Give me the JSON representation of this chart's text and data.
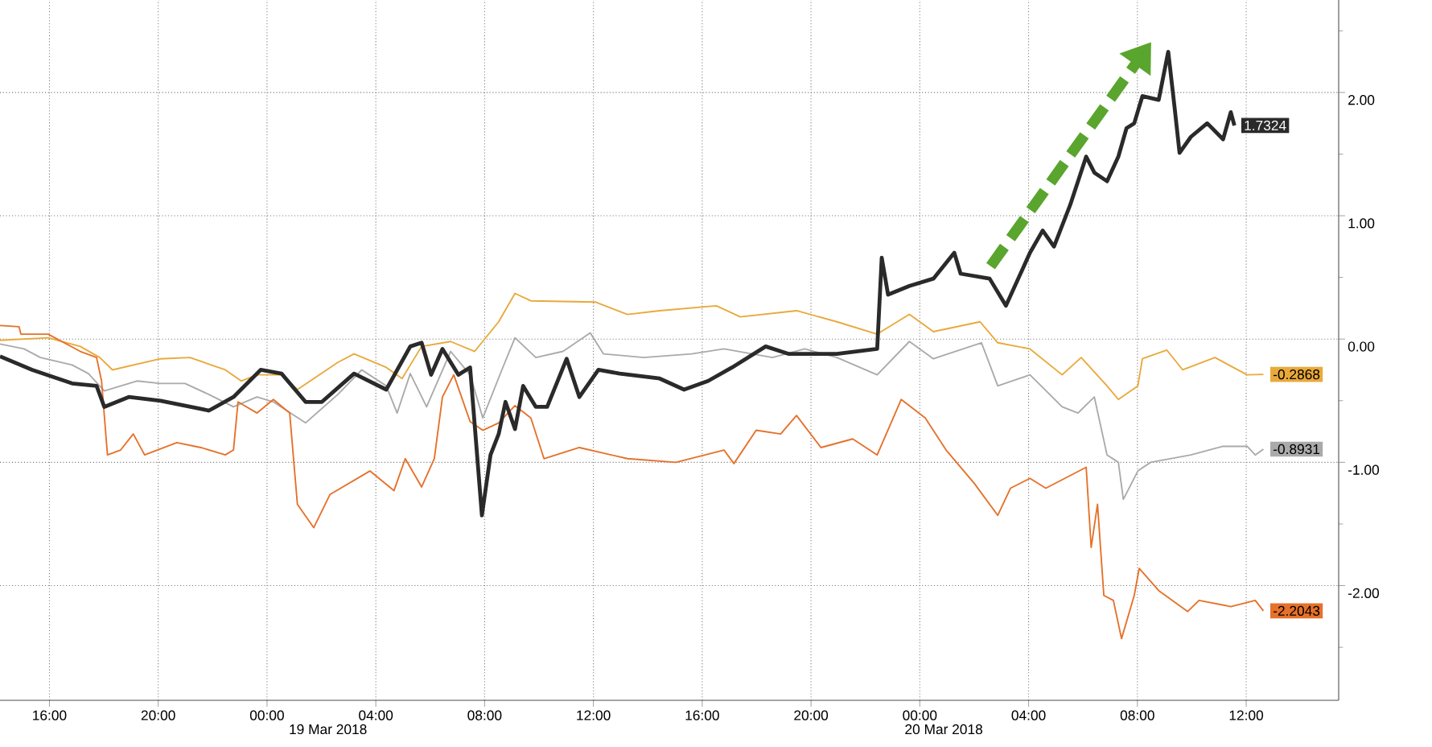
{
  "chart_data": {
    "type": "line",
    "xlim": [
      "2018-03-18T14:11",
      "2018-03-20T15:24"
    ],
    "ylim": [
      -2.93,
      2.75
    ],
    "xticks": [
      {
        "value": "2018-03-18T16:00",
        "label": "16:00"
      },
      {
        "value": "2018-03-18T20:00",
        "label": "20:00"
      },
      {
        "value": "2018-03-19T00:00",
        "label": "00:00"
      },
      {
        "value": "2018-03-19T04:00",
        "label": "04:00"
      },
      {
        "value": "2018-03-19T08:00",
        "label": "08:00"
      },
      {
        "value": "2018-03-19T12:00",
        "label": "12:00"
      },
      {
        "value": "2018-03-19T16:00",
        "label": "16:00"
      },
      {
        "value": "2018-03-19T20:00",
        "label": "20:00"
      },
      {
        "value": "2018-03-20T00:00",
        "label": "00:00"
      },
      {
        "value": "2018-03-20T04:00",
        "label": "04:00"
      },
      {
        "value": "2018-03-20T08:00",
        "label": "08:00"
      },
      {
        "value": "2018-03-20T12:00",
        "label": "12:00"
      }
    ],
    "yticks": [
      {
        "value": 2.5,
        "label": null
      },
      {
        "value": 2,
        "label": "2.00"
      },
      {
        "value": 1.5,
        "label": null
      },
      {
        "value": 1,
        "label": "1.00"
      },
      {
        "value": 0.5,
        "label": null
      },
      {
        "value": 0,
        "label": "0.00"
      },
      {
        "value": -0.5,
        "label": null
      },
      {
        "value": -1,
        "label": "-1.00"
      },
      {
        "value": -1.5,
        "label": null
      },
      {
        "value": -2,
        "label": "-2.00"
      },
      {
        "value": -2.5,
        "label": null
      }
    ],
    "grid": true,
    "annotations": [
      "19 Mar 2018",
      "20 Mar 2018"
    ],
    "series": [
      {
        "color": "#e9a93a",
        "x": [
          "2018-03-18T14:11",
          "2018-03-18T15:57",
          "2018-03-18T17:08",
          "2018-03-18T17:51",
          "2018-03-18T18:19",
          "2018-03-18T20:05",
          "2018-03-18T21:10",
          "2018-03-18T22:28",
          "2018-03-18T23:03",
          "2018-03-18T23:38",
          "2018-03-19T00:32",
          "2018-03-19T01:07",
          "2018-03-19T02:36",
          "2018-03-19T03:12",
          "2018-03-19T04:23",
          "2018-03-19T04:58",
          "2018-03-19T05:41",
          "2018-03-19T06:45",
          "2018-03-19T07:38",
          "2018-03-19T08:31",
          "2018-03-19T09:07",
          "2018-03-19T09:42",
          "2018-03-19T12:04",
          "2018-03-19T13:15",
          "2018-03-19T14:26",
          "2018-03-19T16:31",
          "2018-03-19T17:24",
          "2018-03-19T19:28",
          "2018-03-19T20:57",
          "2018-03-19T22:26",
          "2018-03-19T23:37",
          "2018-03-20T00:30",
          "2018-03-20T02:13",
          "2018-03-20T02:52",
          "2018-03-20T04:03",
          "2018-03-20T05:14",
          "2018-03-20T05:56",
          "2018-03-20T06:53",
          "2018-03-20T07:18",
          "2018-03-20T08:01",
          "2018-03-20T08:11",
          "2018-03-20T09:05",
          "2018-03-20T09:40",
          "2018-03-20T10:51",
          "2018-03-20T12:02",
          "2018-03-20T12:38"
        ],
        "values": [
          -0.01,
          0.01,
          -0.06,
          -0.15,
          -0.25,
          -0.16,
          -0.15,
          -0.25,
          -0.34,
          -0.29,
          -0.29,
          -0.41,
          -0.19,
          -0.12,
          -0.23,
          -0.32,
          -0.06,
          -0.02,
          -0.1,
          0.14,
          0.37,
          0.31,
          0.3,
          0.2,
          0.23,
          0.27,
          0.18,
          0.23,
          0.14,
          0.04,
          0.2,
          0.06,
          0.14,
          -0.03,
          -0.08,
          -0.29,
          -0.15,
          -0.38,
          -0.49,
          -0.38,
          -0.16,
          -0.09,
          -0.25,
          -0.15,
          -0.29,
          -0.2868
        ],
        "value_labels": [
          null,
          null,
          null,
          null,
          null,
          null,
          null,
          null,
          null,
          null,
          null,
          null,
          null,
          null,
          null,
          null,
          null,
          null,
          null,
          null,
          null,
          null,
          null,
          null,
          null,
          null,
          null,
          null,
          null,
          null,
          null,
          null,
          null,
          null,
          null,
          null,
          null,
          null,
          null,
          null,
          null,
          null,
          null,
          null,
          null,
          "-0.2868"
        ]
      },
      {
        "color": "#aaaaaa",
        "x": [
          "2018-03-18T14:11",
          "2018-03-18T15:04",
          "2018-03-18T15:40",
          "2018-03-18T16:50",
          "2018-03-18T17:26",
          "2018-03-18T18:01",
          "2018-03-18T19:13",
          "2018-03-18T20:05",
          "2018-03-18T20:59",
          "2018-03-18T21:52",
          "2018-03-18T22:46",
          "2018-03-18T23:38",
          "2018-03-19T00:14",
          "2018-03-19T01:25",
          "2018-03-19T02:36",
          "2018-03-19T03:29",
          "2018-03-19T04:23",
          "2018-03-19T04:47",
          "2018-03-19T05:16",
          "2018-03-19T05:52",
          "2018-03-19T06:45",
          "2018-03-19T07:28",
          "2018-03-19T07:56",
          "2018-03-19T08:38",
          "2018-03-19T09:07",
          "2018-03-19T09:53",
          "2018-03-19T10:53",
          "2018-03-19T11:53",
          "2018-03-19T12:22",
          "2018-03-19T13:51",
          "2018-03-19T15:37",
          "2018-03-19T16:48",
          "2018-03-19T18:35",
          "2018-03-19T19:46",
          "2018-03-19T20:57",
          "2018-03-19T22:26",
          "2018-03-19T23:37",
          "2018-03-20T00:30",
          "2018-03-20T02:16",
          "2018-03-20T02:52",
          "2018-03-20T04:03",
          "2018-03-20T05:14",
          "2018-03-20T05:49",
          "2018-03-20T06:25",
          "2018-03-20T06:53",
          "2018-03-20T07:18",
          "2018-03-20T07:29",
          "2018-03-20T08:01",
          "2018-03-20T08:29",
          "2018-03-20T09:58",
          "2018-03-20T11:09",
          "2018-03-20T12:02",
          "2018-03-20T12:20",
          "2018-03-20T12:38"
        ],
        "values": [
          -0.04,
          -0.08,
          -0.15,
          -0.21,
          -0.28,
          -0.42,
          -0.34,
          -0.36,
          -0.36,
          -0.45,
          -0.55,
          -0.47,
          -0.51,
          -0.68,
          -0.45,
          -0.25,
          -0.38,
          -0.6,
          -0.28,
          -0.55,
          -0.1,
          -0.29,
          -0.64,
          -0.25,
          0.01,
          -0.15,
          -0.1,
          0.05,
          -0.12,
          -0.15,
          -0.12,
          -0.08,
          -0.15,
          -0.08,
          -0.15,
          -0.29,
          -0.02,
          -0.16,
          -0.03,
          -0.38,
          -0.29,
          -0.55,
          -0.6,
          -0.47,
          -0.94,
          -1,
          -1.3,
          -1.07,
          -1,
          -0.94,
          -0.87,
          -0.87,
          -0.94,
          -0.8931
        ],
        "value_labels": [
          null,
          null,
          null,
          null,
          null,
          null,
          null,
          null,
          null,
          null,
          null,
          null,
          null,
          null,
          null,
          null,
          null,
          null,
          null,
          null,
          null,
          null,
          null,
          null,
          null,
          null,
          null,
          null,
          null,
          null,
          null,
          null,
          null,
          null,
          null,
          null,
          null,
          null,
          null,
          null,
          null,
          null,
          null,
          null,
          null,
          null,
          null,
          null,
          null,
          null,
          null,
          null,
          null,
          "-0.8931"
        ]
      },
      {
        "color": "#e5712a",
        "x": [
          "2018-03-18T14:11",
          "2018-03-18T14:53",
          "2018-03-18T14:57",
          "2018-03-18T15:57",
          "2018-03-18T17:08",
          "2018-03-18T17:44",
          "2018-03-18T17:55",
          "2018-03-18T18:08",
          "2018-03-18T18:37",
          "2018-03-18T19:05",
          "2018-03-18T19:30",
          "2018-03-18T20:41",
          "2018-03-18T21:34",
          "2018-03-18T22:28",
          "2018-03-18T22:46",
          "2018-03-18T22:56",
          "2018-03-18T23:38",
          "2018-03-19T00:14",
          "2018-03-19T00:50",
          "2018-03-19T01:07",
          "2018-03-19T01:43",
          "2018-03-19T02:19",
          "2018-03-19T03:47",
          "2018-03-19T04:40",
          "2018-03-19T05:05",
          "2018-03-19T05:41",
          "2018-03-19T06:09",
          "2018-03-19T06:27",
          "2018-03-19T06:52",
          "2018-03-19T07:28",
          "2018-03-19T07:56",
          "2018-03-19T08:31",
          "2018-03-19T09:07",
          "2018-03-19T09:42",
          "2018-03-19T10:11",
          "2018-03-19T11:29",
          "2018-03-19T13:15",
          "2018-03-19T15:02",
          "2018-03-19T16:48",
          "2018-03-19T17:10",
          "2018-03-19T17:59",
          "2018-03-19T18:53",
          "2018-03-19T19:28",
          "2018-03-19T20:22",
          "2018-03-19T21:32",
          "2018-03-19T22:26",
          "2018-03-19T23:19",
          "2018-03-20T00:12",
          "2018-03-20T00:58",
          "2018-03-20T02:00",
          "2018-03-20T02:52",
          "2018-03-20T03:20",
          "2018-03-20T04:03",
          "2018-03-20T04:38",
          "2018-03-20T06:07",
          "2018-03-20T06:18",
          "2018-03-20T06:32",
          "2018-03-20T06:46",
          "2018-03-20T07:07",
          "2018-03-20T07:25",
          "2018-03-20T07:53",
          "2018-03-20T08:04",
          "2018-03-20T08:47",
          "2018-03-20T09:51",
          "2018-03-20T10:16",
          "2018-03-20T11:26",
          "2018-03-20T12:20",
          "2018-03-20T12:38"
        ],
        "values": [
          0.11,
          0.1,
          0.04,
          0.04,
          -0.1,
          -0.15,
          -0.34,
          -0.94,
          -0.9,
          -0.77,
          -0.94,
          -0.84,
          -0.88,
          -0.94,
          -0.9,
          -0.51,
          -0.6,
          -0.49,
          -0.6,
          -1.34,
          -1.53,
          -1.26,
          -1.07,
          -1.23,
          -0.97,
          -1.2,
          -0.97,
          -0.47,
          -0.29,
          -0.67,
          -0.74,
          -0.68,
          -0.54,
          -0.64,
          -0.97,
          -0.88,
          -0.97,
          -1,
          -0.9,
          -1.01,
          -0.74,
          -0.77,
          -0.62,
          -0.88,
          -0.81,
          -0.94,
          -0.49,
          -0.64,
          -0.9,
          -1.17,
          -1.43,
          -1.21,
          -1.13,
          -1.21,
          -1.04,
          -1.69,
          -1.34,
          -2.08,
          -2.12,
          -2.43,
          -2.08,
          -1.86,
          -2.04,
          -2.21,
          -2.12,
          -2.17,
          -2.12,
          -2.2043
        ],
        "value_labels": [
          null,
          null,
          null,
          null,
          null,
          null,
          null,
          null,
          null,
          null,
          null,
          null,
          null,
          null,
          null,
          null,
          null,
          null,
          null,
          null,
          null,
          null,
          null,
          null,
          null,
          null,
          null,
          null,
          null,
          null,
          null,
          null,
          null,
          null,
          null,
          null,
          null,
          null,
          null,
          null,
          null,
          null,
          null,
          null,
          null,
          null,
          null,
          null,
          null,
          null,
          null,
          null,
          null,
          null,
          null,
          null,
          null,
          null,
          null,
          null,
          null,
          null,
          null,
          null,
          null,
          null,
          null,
          "-2.2043"
        ]
      },
      {
        "color": "#2a2a2a",
        "x": [
          "2018-03-18T14:11",
          "2018-03-18T15:22",
          "2018-03-18T16:50",
          "2018-03-18T17:44",
          "2018-03-18T18:01",
          "2018-03-18T18:55",
          "2018-03-18T20:05",
          "2018-03-18T21:52",
          "2018-03-18T22:46",
          "2018-03-18T23:46",
          "2018-03-19T00:32",
          "2018-03-19T01:25",
          "2018-03-19T02:01",
          "2018-03-19T03:12",
          "2018-03-19T04:23",
          "2018-03-19T05:16",
          "2018-03-19T05:41",
          "2018-03-19T06:02",
          "2018-03-19T06:27",
          "2018-03-19T07:02",
          "2018-03-19T07:28",
          "2018-03-19T07:54",
          "2018-03-19T08:13",
          "2018-03-19T08:31",
          "2018-03-19T08:46",
          "2018-03-19T09:07",
          "2018-03-19T09:25",
          "2018-03-19T09:53",
          "2018-03-19T10:18",
          "2018-03-19T11:01",
          "2018-03-19T11:29",
          "2018-03-19T12:11",
          "2018-03-19T12:58",
          "2018-03-19T14:26",
          "2018-03-19T15:20",
          "2018-03-19T16:13",
          "2018-03-19T17:06",
          "2018-03-19T18:20",
          "2018-03-19T19:10",
          "2018-03-19T20:57",
          "2018-03-19T22:26",
          "2018-03-19T22:36",
          "2018-03-19T22:50",
          "2018-03-19T23:37",
          "2018-03-20T00:30",
          "2018-03-20T01:16",
          "2018-03-20T01:30",
          "2018-03-20T02:34",
          "2018-03-20T03:10",
          "2018-03-20T04:03",
          "2018-03-20T04:31",
          "2018-03-20T04:56",
          "2018-03-20T05:32",
          "2018-03-20T06:07",
          "2018-03-20T06:25",
          "2018-03-20T06:53",
          "2018-03-20T07:18",
          "2018-03-20T07:36",
          "2018-03-20T07:53",
          "2018-03-20T08:11",
          "2018-03-20T08:47",
          "2018-03-20T09:08",
          "2018-03-20T09:22",
          "2018-03-20T09:33",
          "2018-03-20T09:58",
          "2018-03-20T10:34",
          "2018-03-20T11:09",
          "2018-03-20T11:26",
          "2018-03-20T11:34"
        ],
        "values": [
          -0.14,
          -0.25,
          -0.36,
          -0.38,
          -0.55,
          -0.47,
          -0.5,
          -0.58,
          -0.47,
          -0.25,
          -0.28,
          -0.51,
          -0.51,
          -0.28,
          -0.41,
          -0.06,
          -0.03,
          -0.29,
          -0.08,
          -0.29,
          -0.23,
          -1.43,
          -0.94,
          -0.77,
          -0.51,
          -0.73,
          -0.38,
          -0.55,
          -0.55,
          -0.16,
          -0.47,
          -0.25,
          -0.28,
          -0.32,
          -0.41,
          -0.34,
          -0.23,
          -0.06,
          -0.12,
          -0.12,
          -0.08,
          0.66,
          0.36,
          0.43,
          0.49,
          0.7,
          0.53,
          0.49,
          0.27,
          0.7,
          0.88,
          0.75,
          1.09,
          1.48,
          1.35,
          1.28,
          1.48,
          1.71,
          1.75,
          1.97,
          1.94,
          2.33,
          1.88,
          1.51,
          1.64,
          1.75,
          1.62,
          1.84,
          1.7324
        ],
        "value_labels": [
          null,
          null,
          null,
          null,
          null,
          null,
          null,
          null,
          null,
          null,
          null,
          null,
          null,
          null,
          null,
          null,
          null,
          null,
          null,
          null,
          null,
          null,
          null,
          null,
          null,
          null,
          null,
          null,
          null,
          null,
          null,
          null,
          null,
          null,
          null,
          null,
          null,
          null,
          null,
          null,
          null,
          null,
          null,
          null,
          null,
          null,
          null,
          null,
          null,
          null,
          null,
          null,
          null,
          null,
          null,
          null,
          null,
          null,
          null,
          null,
          null,
          null,
          null,
          null,
          null,
          null,
          null,
          null,
          "1.7324"
        ]
      }
    ]
  }
}
